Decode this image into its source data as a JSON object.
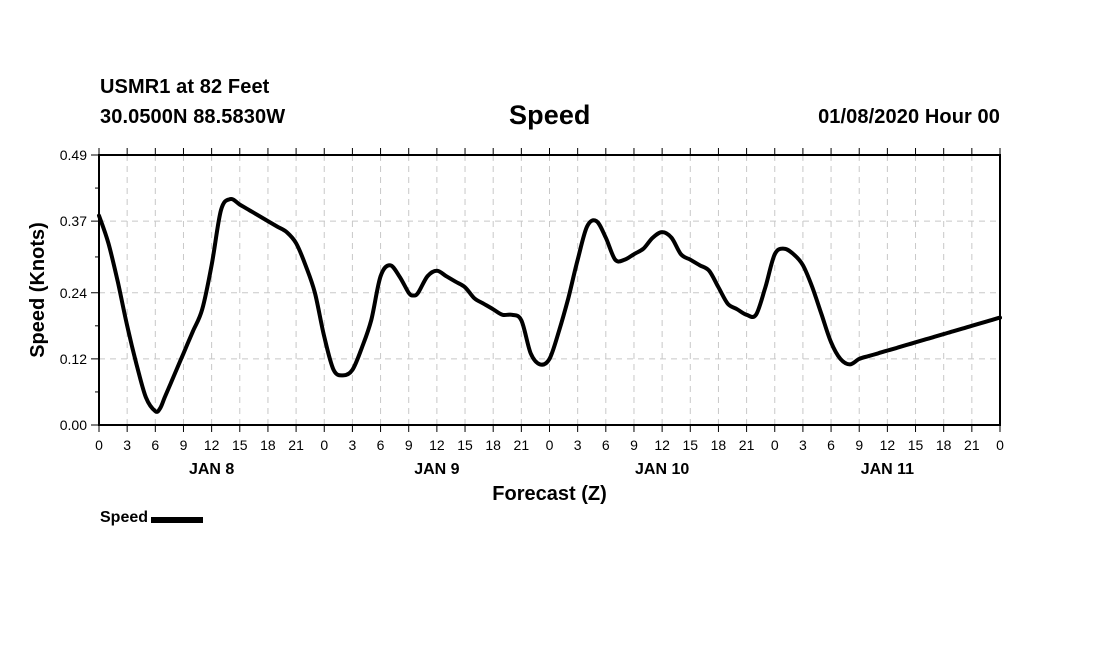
{
  "header": {
    "station": "USMR1 at 82 Feet",
    "coordinates": "30.0500N 88.5830W",
    "title": "Speed",
    "run": "01/08/2020 Hour 00"
  },
  "legend": {
    "label": "Speed",
    "color": "#000000"
  },
  "chart_data": {
    "type": "line",
    "title": "Speed",
    "xlabel": "Forecast (Z)",
    "ylabel": "Speed (Knots)",
    "x_unit": "hour (Z)",
    "xlim": [
      0,
      96
    ],
    "ylim": [
      0,
      0.49
    ],
    "x_ticks": [
      0,
      3,
      6,
      9,
      12,
      15,
      18,
      21,
      24,
      27,
      30,
      33,
      36,
      39,
      42,
      45,
      48,
      51,
      54,
      57,
      60,
      63,
      66,
      69,
      72,
      75,
      78,
      81,
      84,
      87,
      90,
      93,
      96
    ],
    "x_tick_labels": [
      "0",
      "3",
      "6",
      "9",
      "12",
      "15",
      "18",
      "21",
      "0",
      "3",
      "6",
      "9",
      "12",
      "15",
      "18",
      "21",
      "0",
      "3",
      "6",
      "9",
      "12",
      "15",
      "18",
      "21",
      "0",
      "3",
      "6",
      "9",
      "12",
      "15",
      "18",
      "21",
      "0"
    ],
    "y_ticks": [
      0.0,
      0.12,
      0.24,
      0.37,
      0.49
    ],
    "y_tick_labels": [
      "0.00",
      "0.12",
      "0.24",
      "0.37",
      "0.49"
    ],
    "day_labels": [
      {
        "label": "JAN 8",
        "hour": 12
      },
      {
        "label": "JAN 9",
        "hour": 36
      },
      {
        "label": "JAN 10",
        "hour": 60
      },
      {
        "label": "JAN 11",
        "hour": 84
      }
    ],
    "grid": true,
    "legend_position": "bottom-left",
    "series": [
      {
        "name": "Speed",
        "color": "#000000",
        "x": [
          0,
          1,
          2,
          3,
          4,
          5,
          6,
          6.5,
          7,
          8,
          9,
          10,
          11,
          12,
          13,
          14,
          15,
          16,
          17,
          18,
          19,
          20,
          21,
          22,
          23,
          24,
          25,
          26,
          27,
          28,
          29,
          30,
          31,
          32,
          33,
          33.5,
          34,
          35,
          36,
          37,
          38,
          39,
          40,
          41,
          42,
          43,
          44,
          45,
          46,
          47,
          48,
          49,
          50,
          51,
          52,
          53,
          54,
          55,
          56,
          57,
          58,
          59,
          60,
          61,
          62,
          63,
          64,
          65,
          66,
          67,
          68,
          69,
          70,
          71,
          72,
          73,
          74,
          75,
          76,
          77,
          78,
          79,
          80,
          81,
          82,
          83,
          84,
          85,
          86,
          87,
          88,
          89,
          90,
          91,
          92,
          93,
          94,
          95,
          96
        ],
        "values": [
          0.38,
          0.33,
          0.26,
          0.18,
          0.11,
          0.05,
          0.025,
          0.03,
          0.05,
          0.09,
          0.13,
          0.17,
          0.21,
          0.29,
          0.39,
          0.41,
          0.4,
          0.39,
          0.38,
          0.37,
          0.36,
          0.35,
          0.33,
          0.29,
          0.24,
          0.16,
          0.1,
          0.09,
          0.1,
          0.14,
          0.19,
          0.27,
          0.29,
          0.27,
          0.24,
          0.235,
          0.24,
          0.27,
          0.28,
          0.27,
          0.26,
          0.25,
          0.23,
          0.22,
          0.21,
          0.2,
          0.2,
          0.19,
          0.13,
          0.11,
          0.12,
          0.17,
          0.23,
          0.3,
          0.36,
          0.37,
          0.34,
          0.3,
          0.3,
          0.31,
          0.32,
          0.34,
          0.35,
          0.34,
          0.31,
          0.3,
          0.29,
          0.28,
          0.25,
          0.22,
          0.21,
          0.2,
          0.2,
          0.25,
          0.31,
          0.32,
          0.31,
          0.29,
          0.25,
          0.2,
          0.15,
          0.12,
          0.11,
          0.12,
          0.125,
          0.13,
          0.135,
          0.14,
          0.145,
          0.15,
          0.155,
          0.16,
          0.165,
          0.17,
          0.175,
          0.18,
          0.185,
          0.19,
          0.195
        ]
      }
    ]
  }
}
